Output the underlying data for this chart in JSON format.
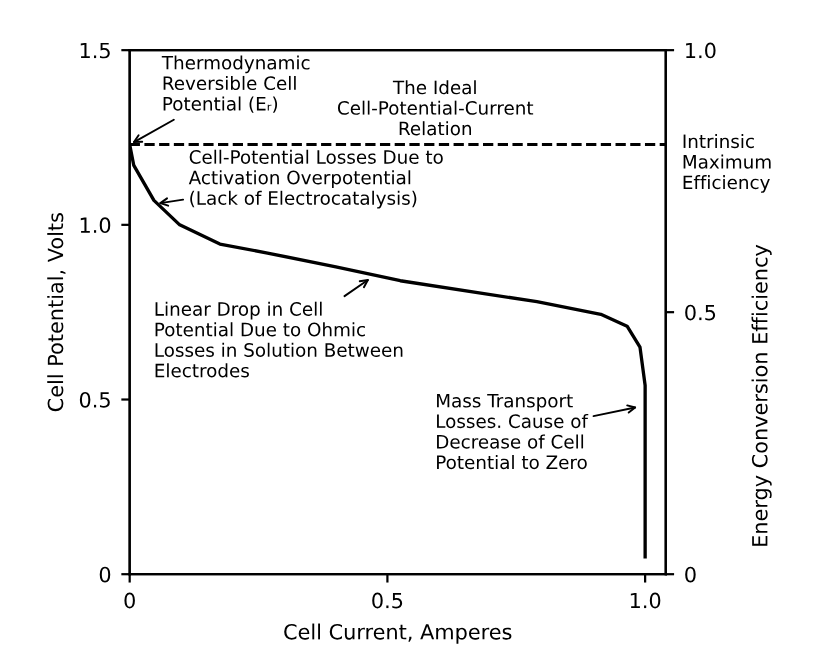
{
  "chart_data": {
    "type": "line",
    "xlabel": "Cell Current, Amperes",
    "ylabel": "Cell Potential, Volts",
    "y2label": "Energy Conversion Efficiency",
    "xlim": [
      0,
      1.04
    ],
    "xticks": [
      0,
      0.5,
      {
        "value": 1.0,
        "label": "1.0"
      }
    ],
    "ylim": [
      0,
      1.5
    ],
    "yticks": [
      0,
      0.5,
      {
        "value": 1.0,
        "label": "1.0"
      },
      1.5
    ],
    "y2lim": [
      0,
      1.0
    ],
    "y2ticks": [
      0,
      0.5,
      {
        "value": 1.0,
        "label": "1.0"
      }
    ],
    "series": [
      {
        "color": "#000000",
        "x": [
          0,
          0.008,
          0.047,
          0.097,
          0.175,
          0.265,
          0.4,
          0.525,
          0.79,
          0.914,
          0.965,
          0.99,
          1.0,
          1.0
        ],
        "values": [
          1.23,
          1.17,
          1.07,
          1.0,
          0.945,
          0.92,
          0.88,
          0.84,
          0.78,
          0.744,
          0.71,
          0.65,
          0.54,
          0.05
        ]
      }
    ],
    "ref_lines": [
      {
        "axis": "y",
        "value": 1.23,
        "label": "The Ideal\nCell-Potential-Current\nRelation",
        "line_style": "dashed",
        "color": "#000000"
      }
    ],
    "annotations": [
      {
        "text": "Thermodynamic\nReversible Cell\nPotential (Eᵣ)",
        "x": 0,
        "y": 1.23
      },
      {
        "text": "Cell-Potential Losses Due to\nActivation Overpotential\n(Lack of Electrocatalysis)",
        "x": 0.05,
        "y": 1.06
      },
      {
        "text": "Linear Drop in Cell\nPotential Due to Ohmic\nLosses in Solution Between\nElectrodes",
        "x": 0.47,
        "y": 0.85
      },
      {
        "text": "Mass Transport\nLosses. Cause of\nDecrease of Cell\nPotential to Zero",
        "x": 0.99,
        "y": 0.48
      },
      "Intrinsic\nMaximum\nEfficiency"
    ],
    "grid": false,
    "legend": false,
    "marker": "none",
    "line_style": "solid"
  }
}
